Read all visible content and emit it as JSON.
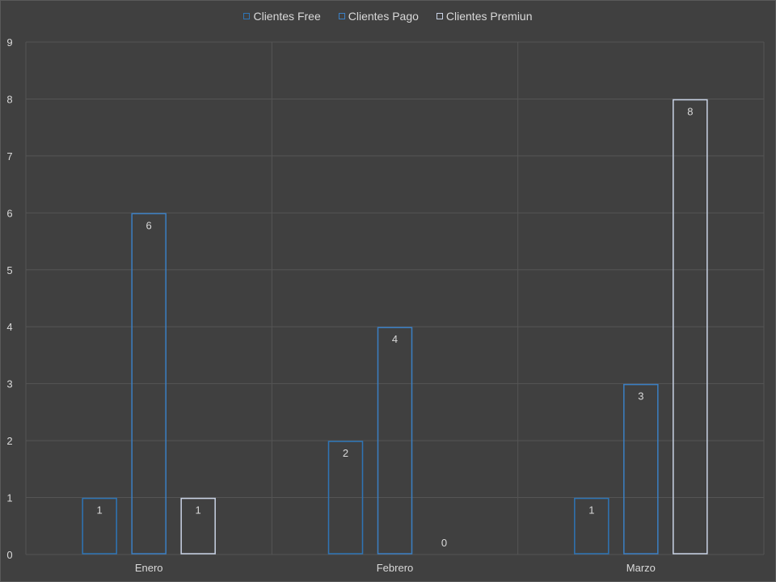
{
  "chart_data": {
    "type": "bar",
    "categories": [
      "Enero",
      "Febrero",
      "Marzo"
    ],
    "series": [
      {
        "name": "Clientes Free",
        "values": [
          1,
          2,
          1
        ],
        "color": "#2e75b6"
      },
      {
        "name": "Clientes Pago",
        "values": [
          6,
          4,
          3
        ],
        "color": "#3b7fc4"
      },
      {
        "name": "Clientes Premiun",
        "values": [
          1,
          0,
          8
        ],
        "color": "#c9d3e6"
      }
    ],
    "ylim": [
      0,
      9
    ],
    "yticks": [
      "0",
      "1",
      "2",
      "3",
      "4",
      "5",
      "6",
      "7",
      "8",
      "9"
    ],
    "grid": true,
    "legend_position": "top-center"
  }
}
